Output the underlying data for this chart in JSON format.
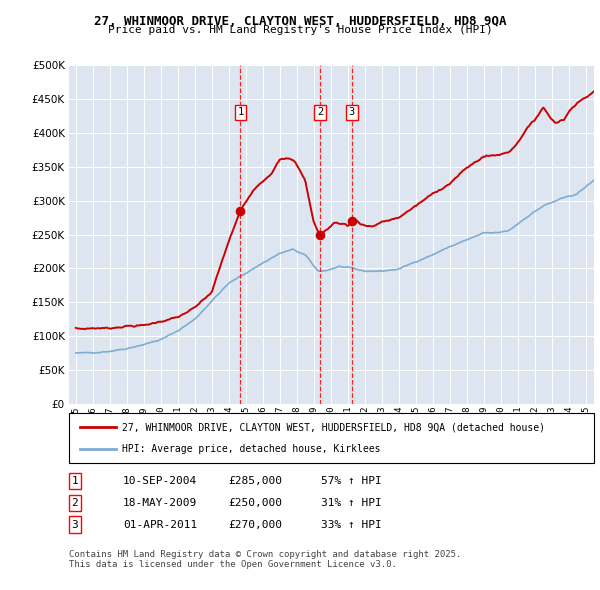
{
  "title_line1": "27, WHINMOOR DRIVE, CLAYTON WEST, HUDDERSFIELD, HD8 9QA",
  "title_line2": "Price paid vs. HM Land Registry's House Price Index (HPI)",
  "bg_color": "#dde6f0",
  "red_line_color": "#cc0000",
  "blue_line_color": "#7dadd4",
  "legend_red": "27, WHINMOOR DRIVE, CLAYTON WEST, HUDDERSFIELD, HD8 9QA (detached house)",
  "legend_blue": "HPI: Average price, detached house, Kirklees",
  "footer": "Contains HM Land Registry data © Crown copyright and database right 2025.\nThis data is licensed under the Open Government Licence v3.0.",
  "ylim": [
    0,
    500000
  ],
  "yticks": [
    0,
    50000,
    100000,
    150000,
    200000,
    250000,
    300000,
    350000,
    400000,
    450000,
    500000
  ],
  "sale_dates_num": [
    2004.69,
    2009.37,
    2011.25
  ],
  "sale_prices": [
    285000,
    250000,
    270000
  ],
  "sale_labels": [
    "1",
    "2",
    "3"
  ],
  "table_rows": [
    [
      "1",
      "10-SEP-2004",
      "£285,000",
      "57% ↑ HPI"
    ],
    [
      "2",
      "18-MAY-2009",
      "£250,000",
      "31% ↑ HPI"
    ],
    [
      "3",
      "01-APR-2011",
      "£270,000",
      "33% ↑ HPI"
    ]
  ],
  "blue_anchors_x": [
    1995.0,
    1996.0,
    1997.0,
    1998.0,
    1999.0,
    2000.0,
    2001.0,
    2002.0,
    2003.0,
    2004.0,
    2005.0,
    2006.0,
    2007.0,
    2007.75,
    2008.5,
    2009.25,
    2009.75,
    2010.5,
    2011.25,
    2012.0,
    2013.0,
    2014.0,
    2015.0,
    2016.0,
    2017.0,
    2018.0,
    2019.0,
    2020.0,
    2020.5,
    2021.5,
    2022.5,
    2023.5,
    2024.5,
    2025.5
  ],
  "blue_anchors_y": [
    75000,
    76000,
    78000,
    82000,
    88000,
    95000,
    108000,
    125000,
    152000,
    178000,
    193000,
    208000,
    222000,
    228000,
    220000,
    196000,
    197000,
    203000,
    200000,
    196000,
    196000,
    199000,
    210000,
    220000,
    232000,
    242000,
    252000,
    253000,
    256000,
    275000,
    292000,
    302000,
    310000,
    330000
  ],
  "red_anchors_x": [
    1995.0,
    1996.0,
    1997.0,
    1998.0,
    1999.0,
    2000.0,
    2001.0,
    2002.0,
    2003.0,
    2004.0,
    2004.69,
    2005.5,
    2006.5,
    2007.0,
    2007.5,
    2007.9,
    2008.5,
    2009.0,
    2009.37,
    2009.5,
    2009.9,
    2010.25,
    2010.9,
    2011.0,
    2011.25,
    2011.5,
    2011.75,
    2012.0,
    2012.5,
    2013.0,
    2014.0,
    2015.0,
    2016.0,
    2017.0,
    2018.0,
    2019.0,
    2020.0,
    2020.5,
    2021.0,
    2021.5,
    2022.0,
    2022.5,
    2023.0,
    2023.25,
    2023.75,
    2024.0,
    2024.5,
    2025.0,
    2025.5
  ],
  "red_anchors_y": [
    110000,
    112000,
    112000,
    115000,
    116000,
    122000,
    128000,
    142000,
    165000,
    240000,
    285000,
    318000,
    340000,
    360000,
    362000,
    358000,
    330000,
    268000,
    250000,
    252000,
    260000,
    268000,
    265000,
    262000,
    270000,
    272000,
    265000,
    263000,
    262000,
    268000,
    275000,
    292000,
    310000,
    325000,
    348000,
    365000,
    368000,
    372000,
    385000,
    405000,
    418000,
    438000,
    420000,
    415000,
    420000,
    430000,
    445000,
    452000,
    460000
  ]
}
